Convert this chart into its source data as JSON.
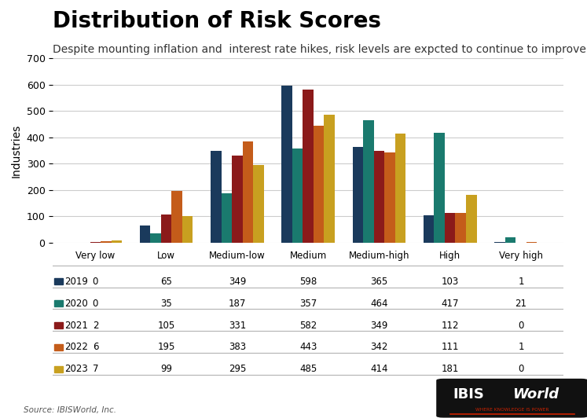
{
  "title": "Distribution of Risk Scores",
  "subtitle": "Despite mounting inflation and  interest rate hikes, risk levels are expcted to continue to improve",
  "ylabel": "Industries",
  "source": "Source: IBISWorld, Inc.",
  "categories": [
    "Very low",
    "Low",
    "Medium-low",
    "Medium",
    "Medium-high",
    "High",
    "Very high"
  ],
  "years": [
    "2019",
    "2020",
    "2021",
    "2022",
    "2023"
  ],
  "colors": [
    "#1a3a5c",
    "#1a7a6e",
    "#8b1a1a",
    "#c45c1a",
    "#c8a020"
  ],
  "data": {
    "2019": [
      0,
      65,
      349,
      598,
      365,
      103,
      1
    ],
    "2020": [
      0,
      35,
      187,
      357,
      464,
      417,
      21
    ],
    "2021": [
      2,
      105,
      331,
      582,
      349,
      112,
      0
    ],
    "2022": [
      6,
      195,
      383,
      443,
      342,
      111,
      1
    ],
    "2023": [
      7,
      99,
      295,
      485,
      414,
      181,
      0
    ]
  },
  "ylim": [
    0,
    700
  ],
  "yticks": [
    0,
    100,
    200,
    300,
    400,
    500,
    600,
    700
  ],
  "background_color": "#ffffff",
  "grid_color": "#cccccc",
  "title_fontsize": 20,
  "subtitle_fontsize": 10,
  "bar_width": 0.15
}
